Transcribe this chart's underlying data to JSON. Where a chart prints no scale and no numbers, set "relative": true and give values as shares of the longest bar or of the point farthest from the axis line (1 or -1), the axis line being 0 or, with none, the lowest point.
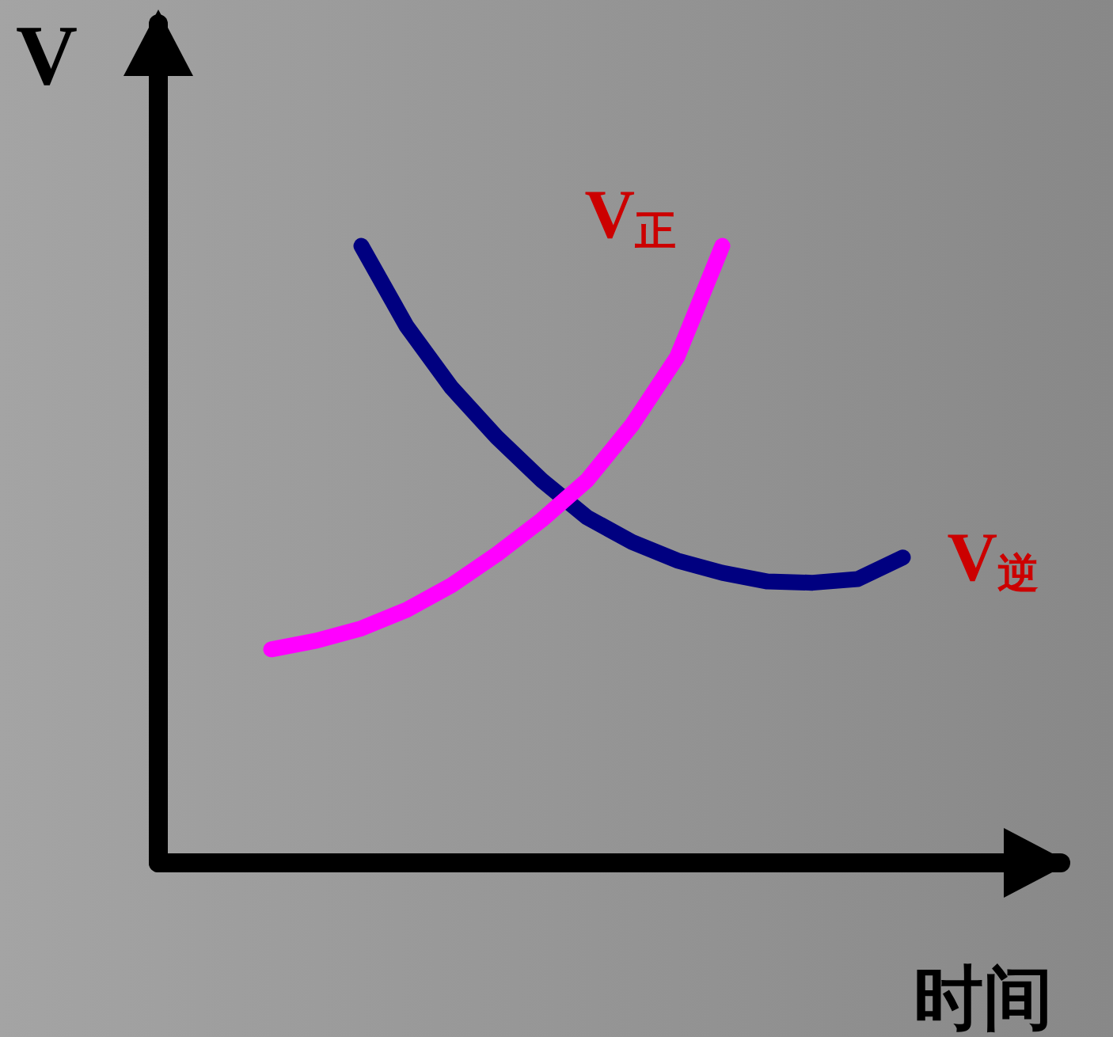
{
  "chart_data": {
    "type": "line",
    "relative": true,
    "xlabel": "时间",
    "ylabel": "V",
    "grid": false,
    "legend": false,
    "line_style": "solid",
    "categories": [
      null,
      null,
      null,
      null,
      null,
      null,
      null,
      null,
      null,
      null,
      null,
      null,
      null,
      null,
      null,
      null,
      null,
      null,
      null,
      null
    ],
    "series": [
      {
        "name": "V$_{逆}$",
        "color": "#000080",
        "values": [
          null,
          null,
          null,
          null,
          1,
          0.87,
          0.77,
          0.69,
          0.62,
          0.56,
          0.52,
          0.49,
          0.47,
          0.456,
          0.454,
          0.46,
          0.495,
          null,
          null,
          null
        ]
      },
      {
        "name": "V$_{正}$",
        "color": "#ff00ff",
        "values": [
          null,
          null,
          0.346,
          0.36,
          0.38,
          0.41,
          0.45,
          0.5,
          0.556,
          0.62,
          0.71,
          0.82,
          1,
          null,
          null,
          null,
          null,
          null,
          null,
          null
        ]
      }
    ]
  }
}
